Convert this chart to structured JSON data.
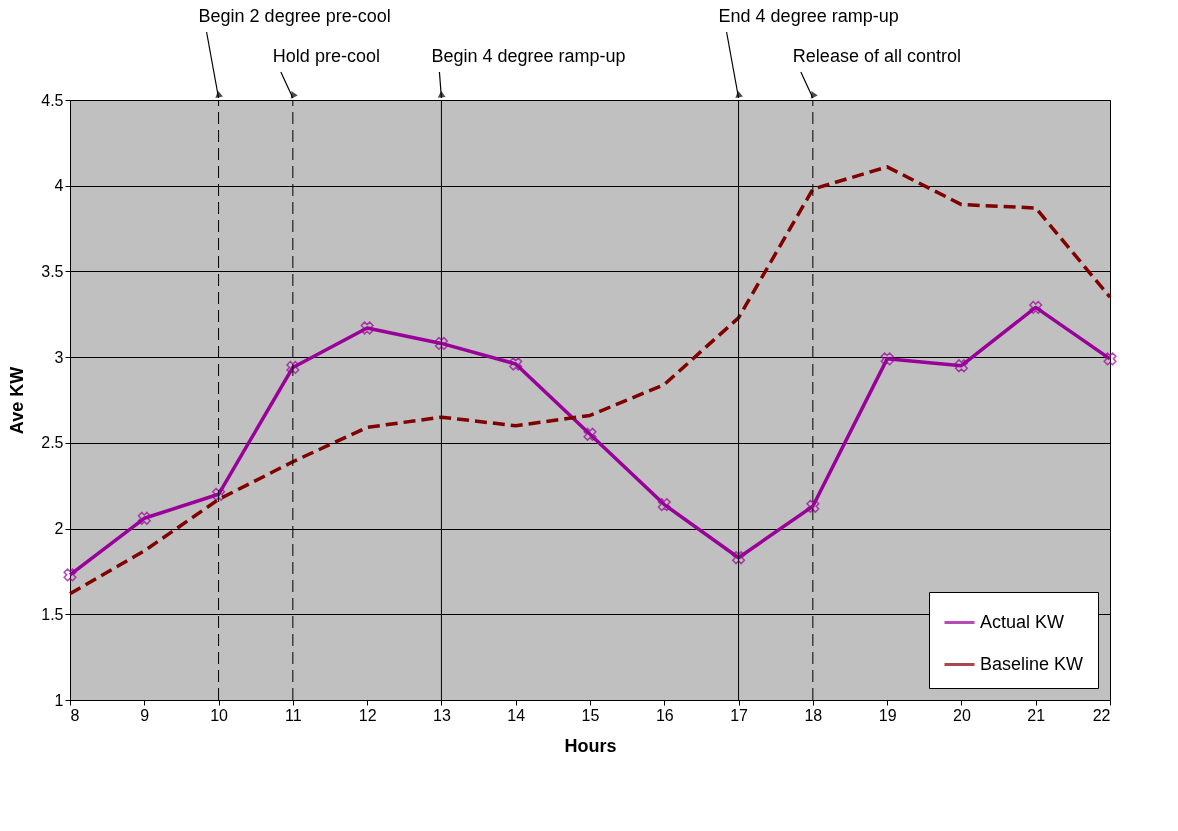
{
  "chart_data": {
    "type": "line",
    "xlabel": "Hours",
    "ylabel": "Ave KW",
    "x": [
      8,
      9,
      10,
      11,
      12,
      13,
      14,
      15,
      16,
      17,
      18,
      19,
      20,
      21,
      22
    ],
    "series": [
      {
        "name": "Actual KW",
        "color": "#990099",
        "marker": "cross",
        "line_style": "solid",
        "values": [
          1.73,
          2.06,
          2.2,
          2.94,
          3.17,
          3.08,
          2.96,
          2.55,
          2.14,
          1.83,
          2.13,
          2.99,
          2.95,
          3.29,
          2.99
        ]
      },
      {
        "name": "Baseline KW",
        "color": "#800000",
        "marker": "none",
        "line_style": "dashed",
        "values": [
          1.62,
          1.87,
          2.17,
          2.39,
          2.59,
          2.65,
          2.6,
          2.66,
          2.84,
          3.23,
          3.98,
          4.11,
          3.89,
          3.87,
          3.35
        ]
      }
    ],
    "xlim": [
      8,
      22
    ],
    "xticks": [
      8,
      9,
      10,
      11,
      12,
      13,
      14,
      15,
      16,
      17,
      18,
      19,
      20,
      21,
      22
    ],
    "ylim": [
      1,
      4.5
    ],
    "yticks": [
      1,
      1.5,
      2,
      2.5,
      3,
      3.5,
      4,
      4.5
    ],
    "grid": "y",
    "legend": "bottom right",
    "ref_lines": [
      {
        "axis": "x",
        "value": 10,
        "label": "Begin 2 degree pre-cool",
        "line_style": "dashed"
      },
      {
        "axis": "x",
        "value": 11,
        "label": "Hold pre-cool",
        "line_style": "dashed"
      },
      {
        "axis": "x",
        "value": 13,
        "label": "Begin 4 degree ramp-up",
        "line_style": "solid"
      },
      {
        "axis": "x",
        "value": 17,
        "label": "End 4 degree ramp-up",
        "line_style": "solid"
      },
      {
        "axis": "x",
        "value": 18,
        "label": "Release of all control",
        "line_style": "dashed"
      }
    ]
  }
}
